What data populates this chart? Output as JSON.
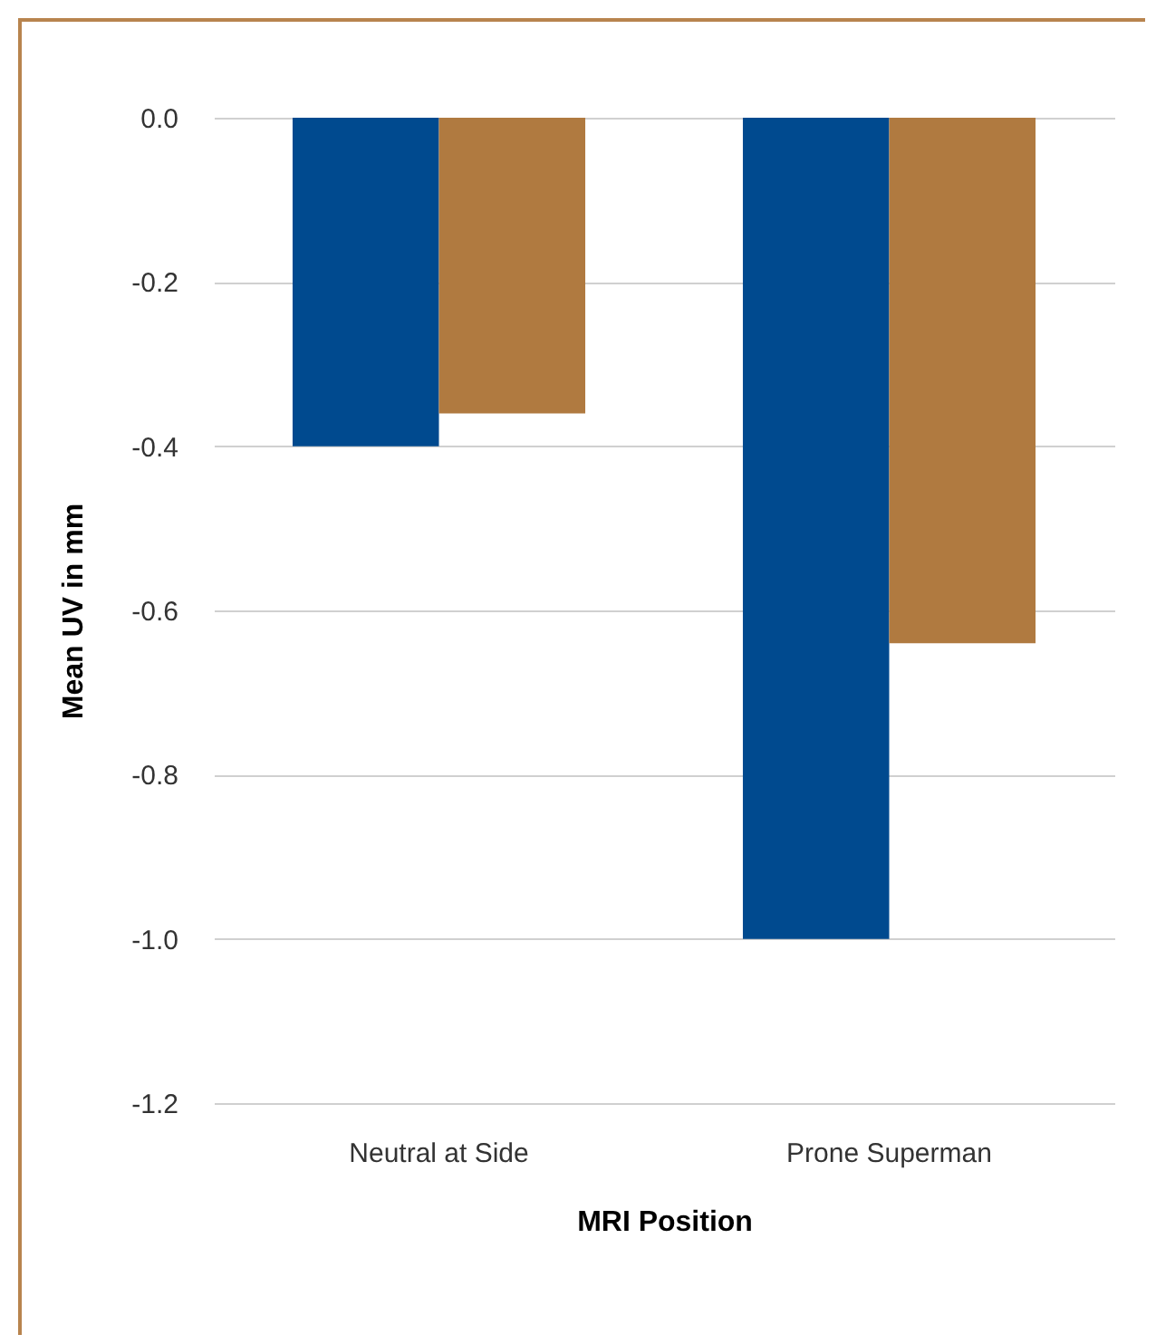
{
  "chart_data": {
    "type": "bar",
    "xlabel": "MRI Position",
    "ylabel": "Mean UV in mm",
    "categories": [
      "Neutral at Side",
      "Prone Superman"
    ],
    "series": [
      {
        "color": "#004a8f",
        "values": [
          -0.4,
          -1.0
        ]
      },
      {
        "color": "#b07a40",
        "values": [
          -0.36,
          -0.64
        ]
      }
    ],
    "ylim": [
      -1.2,
      0
    ],
    "yticks": [
      {
        "value": -1.2,
        "label": "-1.2"
      },
      {
        "value": -1.0,
        "label": "-1.0"
      },
      {
        "value": -0.8,
        "label": "-0.8"
      },
      {
        "value": -0.6,
        "label": "-0.6"
      },
      {
        "value": -0.4,
        "label": "-0.4"
      },
      {
        "value": -0.2,
        "label": "-0.2"
      },
      {
        "value": 0,
        "label": "0.0"
      }
    ],
    "grid": "y",
    "legend": false
  }
}
